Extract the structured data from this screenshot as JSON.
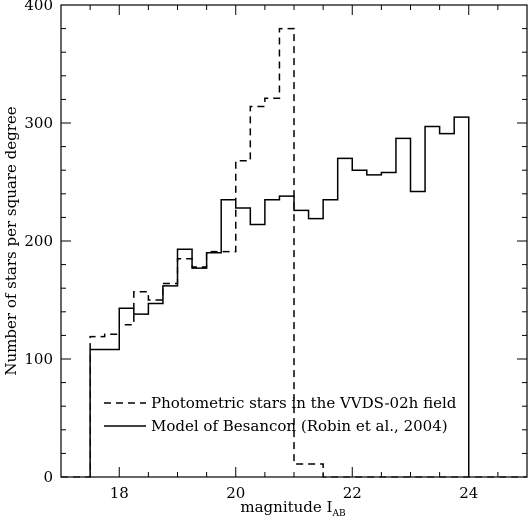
{
  "chart_data": {
    "type": "line",
    "xlabel": "magnitude I",
    "xlabel_subscript": "AB",
    "ylabel": "Number of stars per square degree",
    "xlim": [
      17.0,
      25.0
    ],
    "ylim": [
      0,
      400
    ],
    "x_ticks": [
      18,
      20,
      22,
      24
    ],
    "x_tick_labels": [
      "18",
      "20",
      "22",
      "24"
    ],
    "y_ticks": [
      0,
      100,
      200,
      300,
      400
    ],
    "y_tick_labels": [
      "0",
      "100",
      "200",
      "300",
      "400"
    ],
    "grid": false,
    "legend_position": "lower-center",
    "series": [
      {
        "name": "Photometric stars in the VVDS-02h field",
        "style": "dashed",
        "color": "#000000",
        "edges": [
          17.0,
          17.5,
          17.75,
          18.0,
          18.25,
          18.5,
          18.75,
          19.0,
          19.25,
          19.5,
          19.75,
          20.0,
          20.25,
          20.5,
          20.75,
          21.0,
          21.5,
          22.0,
          22.5,
          23.0,
          23.5,
          24.0,
          24.5,
          25.0
        ],
        "values": [
          0,
          119,
          121,
          129,
          157,
          150,
          164,
          185,
          178,
          191,
          191,
          268,
          314,
          321,
          380,
          11,
          0,
          0,
          0,
          0,
          0,
          0,
          0
        ]
      },
      {
        "name": "Model of Besancon (Robin et al., 2004)",
        "style": "solid",
        "color": "#000000",
        "edges": [
          17.5,
          18.0,
          18.25,
          18.5,
          18.75,
          19.0,
          19.25,
          19.5,
          19.75,
          20.0,
          20.25,
          20.5,
          20.75,
          21.0,
          21.25,
          21.5,
          21.75,
          22.0,
          22.25,
          22.5,
          22.75,
          23.0,
          23.25,
          23.5,
          23.75,
          24.0
        ],
        "values": [
          108,
          143,
          138,
          147,
          162,
          193,
          177,
          190,
          235,
          228,
          214,
          235,
          238,
          226,
          219,
          235,
          270,
          260,
          256,
          258,
          287,
          242,
          297,
          291,
          305
        ]
      }
    ]
  }
}
